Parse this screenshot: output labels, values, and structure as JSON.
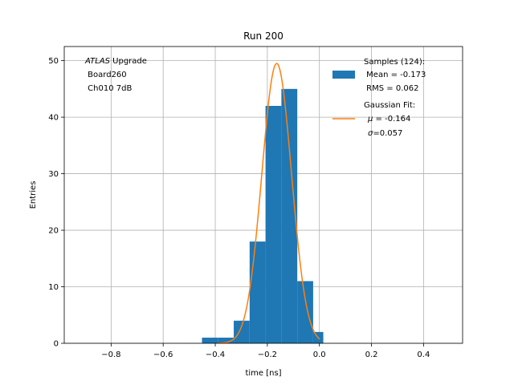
{
  "chart_data": {
    "type": "bar",
    "title": "Run 200",
    "xlabel": "time [ns]",
    "ylabel": "Entries",
    "xlim": [
      -0.98,
      0.55
    ],
    "ylim": [
      0,
      52.5
    ],
    "x_ticks": [
      -0.8,
      -0.6,
      -0.4,
      -0.2,
      0.0,
      0.2,
      0.4
    ],
    "x_tick_labels": [
      "−0.8",
      "−0.6",
      "−0.4",
      "−0.2",
      "0.0",
      "0.2",
      "0.4"
    ],
    "y_ticks": [
      0,
      10,
      20,
      30,
      40,
      50
    ],
    "y_tick_labels": [
      "0",
      "10",
      "20",
      "30",
      "40",
      "50"
    ],
    "grid": true,
    "annotation": {
      "italic": "ATLAS",
      "rest": " Upgrade",
      "line2": " Board260",
      "line3": " Ch010 7dB"
    },
    "legend": {
      "position": "top-right",
      "samples": {
        "line1": "Samples (124):",
        "line2": " Mean = -0.173",
        "line3": " RMS = 0.062",
        "color": "#1f77b4"
      },
      "fit": {
        "line1": "Gaussian Fit:",
        "mu_symbol": "μ",
        "mu_rest": " = -0.164",
        "sigma_symbol": "σ",
        "sigma_rest": "=0.057",
        "color": "#ff7f0e"
      }
    },
    "histogram": {
      "color": "#1f77b4",
      "bins": [
        {
          "x0": -0.451,
          "x1": -0.39,
          "count": 1
        },
        {
          "x0": -0.39,
          "x1": -0.329,
          "count": 1
        },
        {
          "x0": -0.329,
          "x1": -0.268,
          "count": 4
        },
        {
          "x0": -0.268,
          "x1": -0.207,
          "count": 18
        },
        {
          "x0": -0.207,
          "x1": -0.146,
          "count": 42
        },
        {
          "x0": -0.146,
          "x1": -0.085,
          "count": 45
        },
        {
          "x0": -0.085,
          "x1": -0.024,
          "count": 11
        },
        {
          "x0": -0.024,
          "x1": 0.015,
          "count": 2
        }
      ]
    },
    "gaussian_fit": {
      "color": "#ff7f0e",
      "amplitude": 49.5,
      "mu": -0.164,
      "sigma": 0.057,
      "x_range": [
        -0.391,
        0.001
      ]
    }
  }
}
